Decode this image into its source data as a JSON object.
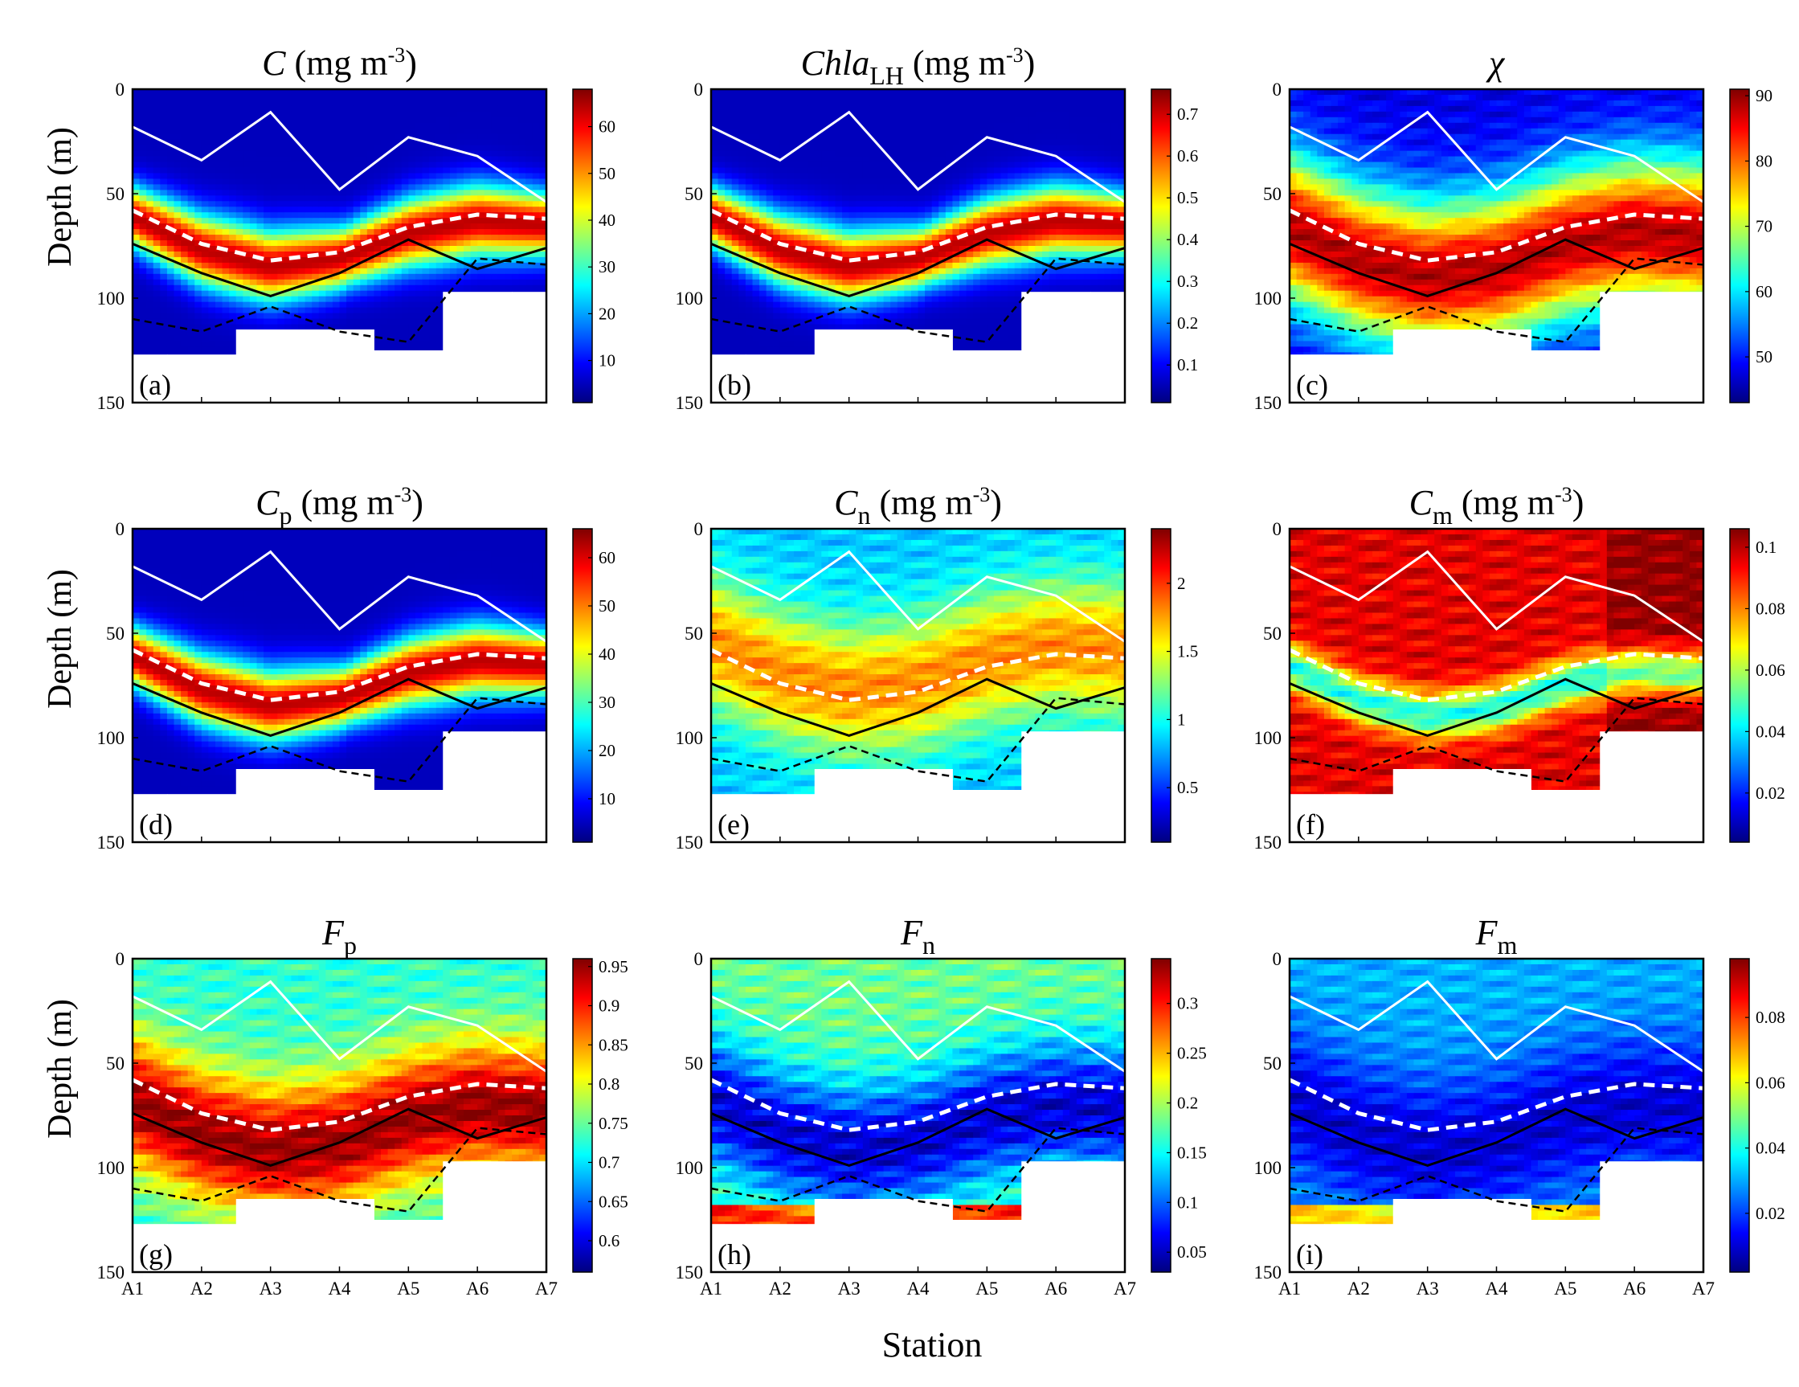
{
  "figure": {
    "xlabel": "Station",
    "ylabel": "Depth (m)"
  },
  "colors": {
    "colormap": [
      "#00007f",
      "#0000ff",
      "#0080ff",
      "#00ffff",
      "#80ff80",
      "#ffff00",
      "#ff8000",
      "#ff0000",
      "#7f0000"
    ],
    "frame": "#000000",
    "mask": "#ffffff",
    "mld_line": "#ffffff",
    "dcm_line": "#ffffff",
    "euphotic_line": "#000000",
    "nitracline_line": "#000000"
  },
  "chart_data": {
    "type": "section-heatmap",
    "stations": [
      "A1",
      "A2",
      "A3",
      "A4",
      "A5",
      "A6",
      "A7"
    ],
    "depth_range": [
      0,
      150
    ],
    "depth_ticks": [
      0,
      50,
      100,
      150
    ],
    "bottom_depth_m": [
      127,
      127,
      115,
      115,
      125,
      97,
      97
    ],
    "overlay_lines": {
      "mld_white_solid": [
        18,
        34,
        11,
        48,
        23,
        32,
        54
      ],
      "dcm_white_dashed": [
        58,
        74,
        82,
        78,
        66,
        60,
        62
      ],
      "euphotic_black_solid": [
        74,
        88,
        99,
        88,
        72,
        86,
        76
      ],
      "nitracline_black_dashed": [
        110,
        116,
        104,
        116,
        121,
        81,
        84
      ]
    },
    "panels": [
      {
        "label": "(a)",
        "title": {
          "var": "C",
          "sub": "",
          "unit_pre": " (mg m",
          "sup": "-3",
          "unit_post": ")"
        },
        "cbar_range": [
          1,
          68
        ],
        "cbar_ticks": [
          "10",
          "20",
          "30",
          "40",
          "50",
          "60"
        ],
        "field": "dcm",
        "show_xticks": false
      },
      {
        "label": "(b)",
        "title": {
          "var": "Chla",
          "sub": "LH",
          "unit_pre": " (mg m",
          "sup": "-3",
          "unit_post": ")"
        },
        "cbar_range": [
          0.01,
          0.76
        ],
        "cbar_ticks": [
          "0.1",
          "0.2",
          "0.3",
          "0.4",
          "0.5",
          "0.6",
          "0.7"
        ],
        "field": "dcm",
        "show_xticks": false
      },
      {
        "label": "(c)",
        "title": {
          "var": "χ",
          "sub": "",
          "unit_pre": "",
          "sup": "",
          "unit_post": ""
        },
        "cbar_range": [
          43,
          91
        ],
        "cbar_ticks": [
          "50",
          "60",
          "70",
          "80",
          "90"
        ],
        "field": "chi",
        "show_xticks": false
      },
      {
        "label": "(d)",
        "title": {
          "var": "C",
          "sub": "p",
          "unit_pre": " (mg m",
          "sup": "-3",
          "unit_post": ")"
        },
        "cbar_range": [
          1,
          66
        ],
        "cbar_ticks": [
          "10",
          "20",
          "30",
          "40",
          "50",
          "60"
        ],
        "field": "dcm",
        "show_xticks": false
      },
      {
        "label": "(e)",
        "title": {
          "var": "C",
          "sub": "n",
          "unit_pre": " (mg m",
          "sup": "-3",
          "unit_post": ")"
        },
        "cbar_range": [
          0.1,
          2.4
        ],
        "cbar_ticks": [
          "0.5",
          "1",
          "1.5",
          "2"
        ],
        "field": "cn",
        "show_xticks": false
      },
      {
        "label": "(f)",
        "title": {
          "var": "C",
          "sub": "m",
          "unit_pre": " (mg m",
          "sup": "-3",
          "unit_post": ")"
        },
        "cbar_range": [
          0.004,
          0.106
        ],
        "cbar_ticks": [
          "0.02",
          "0.04",
          "0.06",
          "0.08",
          "0.1"
        ],
        "field": "cm",
        "show_xticks": false
      },
      {
        "label": "(g)",
        "title": {
          "var": "F",
          "sub": "p",
          "unit_pre": "",
          "sup": "",
          "unit_post": ""
        },
        "cbar_range": [
          0.56,
          0.96
        ],
        "cbar_ticks": [
          "0.6",
          "0.65",
          "0.7",
          "0.75",
          "0.8",
          "0.85",
          "0.9",
          "0.95"
        ],
        "field": "fp",
        "show_xticks": true
      },
      {
        "label": "(h)",
        "title": {
          "var": "F",
          "sub": "n",
          "unit_pre": "",
          "sup": "",
          "unit_post": ""
        },
        "cbar_range": [
          0.03,
          0.345
        ],
        "cbar_ticks": [
          "0.05",
          "0.1",
          "0.15",
          "0.2",
          "0.25",
          "0.3"
        ],
        "field": "fn",
        "show_xticks": true
      },
      {
        "label": "(i)",
        "title": {
          "var": "F",
          "sub": "m",
          "unit_pre": "",
          "sup": "",
          "unit_post": ""
        },
        "cbar_range": [
          0.002,
          0.098
        ],
        "cbar_ticks": [
          "0.02",
          "0.04",
          "0.06",
          "0.08"
        ],
        "field": "fm",
        "show_xticks": true
      }
    ]
  }
}
